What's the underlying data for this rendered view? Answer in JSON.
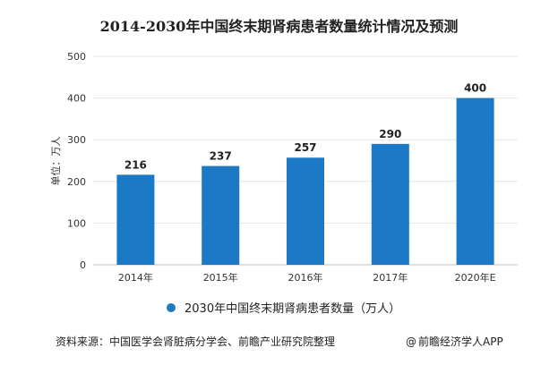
{
  "chart_data": {
    "type": "bar",
    "title": "2014-2030年中国终末期肾病患者数量统计情况及预测",
    "ylabel": "单位：万人",
    "categories": [
      "2014年",
      "2015年",
      "2016年",
      "2017年",
      "2020年E"
    ],
    "series": [
      {
        "name": "2030年中国终末期肾病患者数量（万人）",
        "values": [
          216,
          237,
          257,
          290,
          400
        ]
      }
    ],
    "ylim": [
      0,
      500
    ],
    "yticks": [
      0,
      100,
      200,
      300,
      400,
      500
    ],
    "grid": true,
    "legend_position": "bottom",
    "colors": {
      "bar": "#1b79c6",
      "grid": "#e6e6e6"
    }
  },
  "footer": {
    "source": "资料来源：中国医学会肾脏病分学会、前瞻产业研究院整理",
    "credit_symbol": "@",
    "credit": "前瞻经济学人APP"
  }
}
